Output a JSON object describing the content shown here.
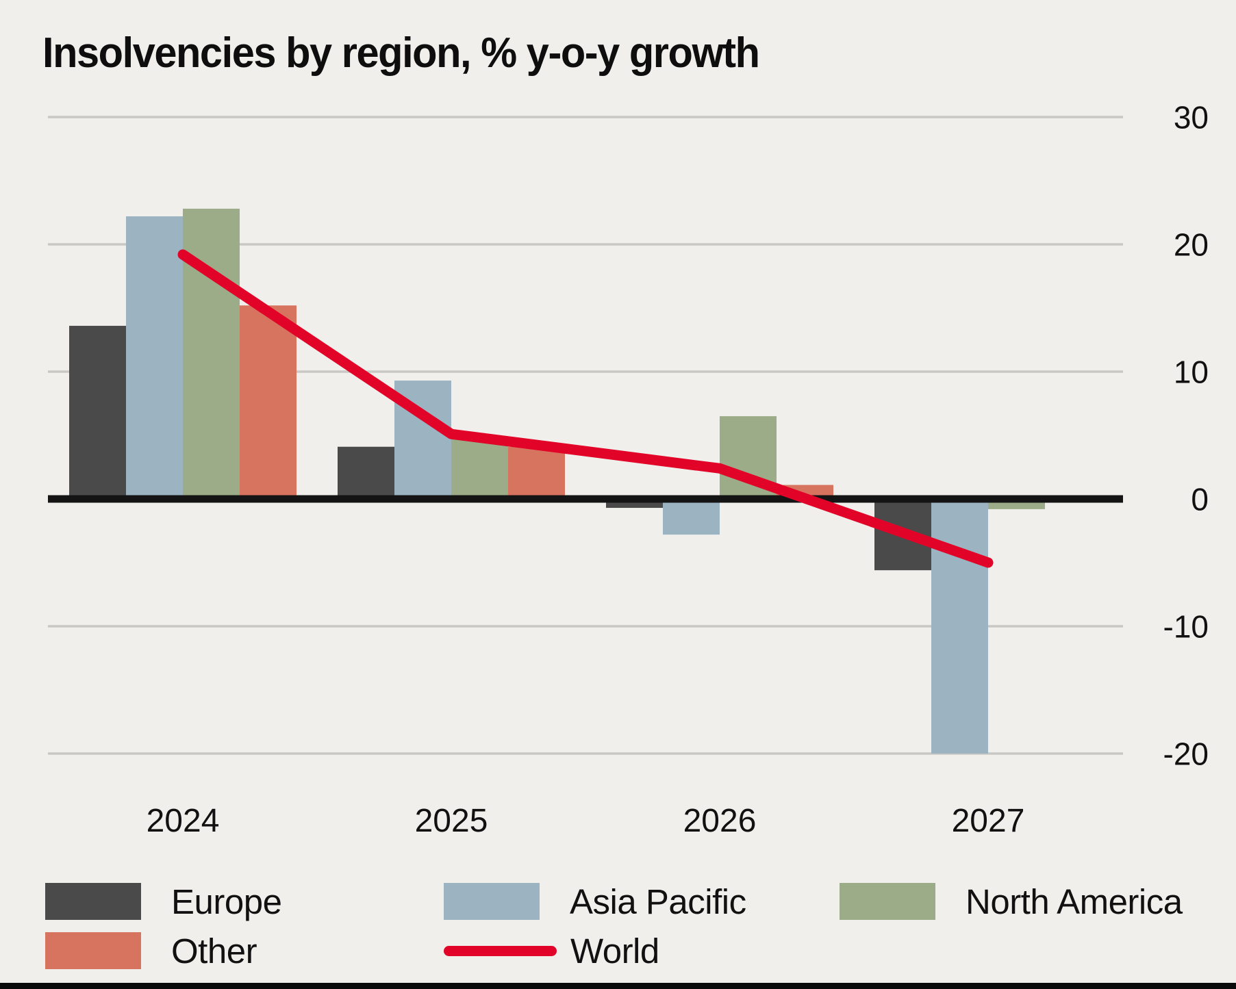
{
  "title": "Insolvencies by region, % y-o-y growth",
  "colors": {
    "background": "#f0efec",
    "gridline": "#c9c8c5",
    "zero_line": "#141414",
    "text": "#111111",
    "europe": "#4a4a4a",
    "asia_pacific": "#9cb4c2",
    "north_america": "#9cab88",
    "other": "#d7745f",
    "world": "#e20428"
  },
  "chart_data": {
    "type": "bar",
    "title": "Insolvencies by region, % y-o-y growth",
    "categories": [
      "2024",
      "2025",
      "2026",
      "2027"
    ],
    "series": [
      {
        "name": "Europe",
        "color": "#4a4a4a",
        "values": [
          13.6,
          4.1,
          -0.7,
          -5.6
        ]
      },
      {
        "name": "Asia Pacific",
        "color": "#9cb4c2",
        "values": [
          22.2,
          9.3,
          -2.8,
          -20.0
        ]
      },
      {
        "name": "North America",
        "color": "#9cab88",
        "values": [
          22.8,
          4.8,
          6.5,
          -0.8
        ]
      },
      {
        "name": "Other",
        "color": "#d7745f",
        "values": [
          15.2,
          4.1,
          1.1,
          0
        ]
      }
    ],
    "line_series": {
      "name": "World",
      "color": "#e20428",
      "values": [
        19.2,
        5.1,
        2.4,
        -5.0
      ]
    },
    "xlabel": "",
    "ylabel": "",
    "ylim": [
      -20,
      30
    ],
    "yticks": [
      30,
      20,
      10,
      0,
      -10,
      -20
    ],
    "grid": "horizontal",
    "legend_position": "bottom",
    "axis_labels_side": "right"
  }
}
